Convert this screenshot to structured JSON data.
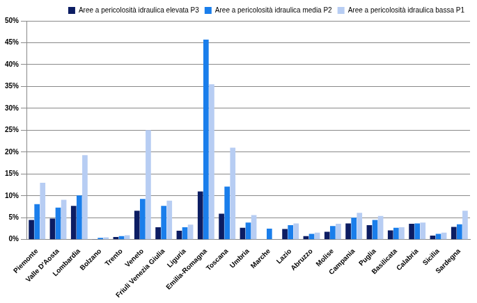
{
  "chart_data": {
    "type": "bar",
    "categories": [
      "Piemonte",
      "Valle D'Aosta",
      "Lombardia",
      "Bolzano",
      "Trento",
      "Veneto",
      "Friuli Venezia Giulia",
      "Liguria",
      "Emilia-Romagna",
      "Toscana",
      "Umbria",
      "Marche",
      "Lazio",
      "Abruzzo",
      "Molise",
      "Campania",
      "Puglia",
      "Basilicata",
      "Calabria",
      "Sicilia",
      "Sardegna"
    ],
    "series": [
      {
        "name": "Aree a pericolosità idraulica elevata P3",
        "color": "#0c1d63",
        "values": [
          4.5,
          4.8,
          7.7,
          0.1,
          0.6,
          6.6,
          2.8,
          2.0,
          11.0,
          5.9,
          2.7,
          0,
          2.4,
          0.8,
          1.8,
          3.7,
          3.3,
          2.1,
          3.6,
          0.9,
          2.9
        ]
      },
      {
        "name": "Aree a pericolosità idraulica media P2",
        "color": "#1a7eeb",
        "values": [
          8.1,
          7.3,
          10.1,
          0.4,
          0.8,
          9.3,
          7.7,
          2.8,
          45.7,
          12.1,
          3.9,
          2.5,
          3.3,
          1.3,
          3.1,
          5.0,
          4.5,
          2.7,
          3.7,
          1.3,
          3.5
        ]
      },
      {
        "name": "Aree a pericolosità idraulica bassa P1",
        "color": "#b7cdf3",
        "values": [
          13.0,
          9.1,
          19.3,
          0.5,
          1.0,
          25.0,
          8.9,
          3.4,
          35.5,
          21.0,
          5.6,
          0,
          3.7,
          1.6,
          3.6,
          6.1,
          5.4,
          2.8,
          3.9,
          1.6,
          6.6
        ]
      }
    ],
    "ylim": [
      0,
      50
    ],
    "yticks": [
      {
        "value": 0,
        "label": "0%"
      },
      {
        "value": 5,
        "label": "5%"
      },
      {
        "value": 10,
        "label": "10%"
      },
      {
        "value": 15,
        "label": "15%"
      },
      {
        "value": 20,
        "label": "20%"
      },
      {
        "value": 25,
        "label": "25%"
      },
      {
        "value": 30,
        "label": "30%"
      },
      {
        "value": 35,
        "label": "35%"
      },
      {
        "value": 40,
        "label": "40%"
      },
      {
        "value": 45,
        "label": "45%"
      },
      {
        "value": 50,
        "label": "50%"
      }
    ],
    "grid": true,
    "legend": "upper right"
  }
}
